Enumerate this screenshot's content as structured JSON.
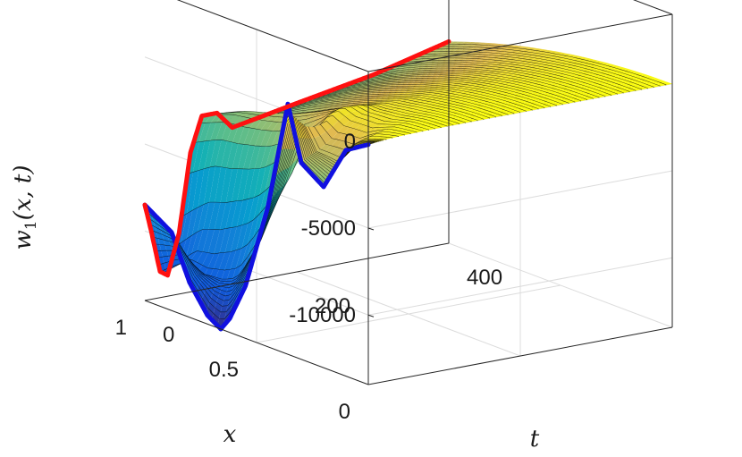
{
  "chart_data": {
    "type": "surface",
    "zlabel": "w_1(x,t)",
    "xlabel": "x",
    "tlabel": "t",
    "x_ticks": [
      "0",
      "0.5",
      "1"
    ],
    "t_ticks": [
      "0",
      "200",
      "400"
    ],
    "z_ticks": [
      "0",
      "-5000",
      "-10000"
    ],
    "xlim": [
      0,
      1
    ],
    "tlim": [
      0,
      400
    ],
    "zlim": [
      -14000,
      4000
    ],
    "grid": true,
    "colormap": "parula",
    "edge_color": "#000000",
    "boundary_curves": [
      {
        "edge": "t = 0",
        "color": "#1010e0",
        "points": [
          [
            0.0,
            -200
          ],
          [
            0.1,
            -1000
          ],
          [
            0.2,
            -3600
          ],
          [
            0.3,
            -2700
          ],
          [
            0.36,
            400
          ],
          [
            0.45,
            -6000
          ],
          [
            0.55,
            -11000
          ],
          [
            0.62,
            -13200
          ],
          [
            0.66,
            -14000
          ],
          [
            0.72,
            -13500
          ],
          [
            0.8,
            -12000
          ],
          [
            0.88,
            -9500
          ],
          [
            1.0,
            -8500
          ]
        ]
      },
      {
        "edge": "x = 1",
        "color": "#ff1010",
        "points": [
          [
            0,
            -8500
          ],
          [
            8,
            -10000
          ],
          [
            20,
            -12500
          ],
          [
            30,
            -12800
          ],
          [
            45,
            -10500
          ],
          [
            60,
            -6000
          ],
          [
            75,
            -4000
          ],
          [
            95,
            -4000
          ],
          [
            115,
            -5000
          ],
          [
            140,
            -4800
          ],
          [
            200,
            -4300
          ],
          [
            300,
            -3500
          ],
          [
            400,
            -2400
          ]
        ]
      }
    ]
  }
}
